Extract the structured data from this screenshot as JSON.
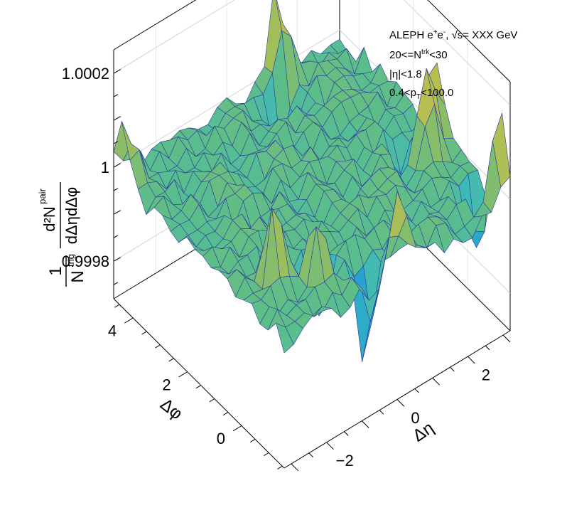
{
  "chart_data": {
    "type": "surface",
    "title": "",
    "experiment": "ALEPH e",
    "sup_plus": "+",
    "e_letter": "e",
    "sup_minus": "-",
    "energy": ", √s= XXX GeV",
    "mult_prefix": "20<=N",
    "mult_sup": "trk",
    "mult_suffix": "<30",
    "eta_cut": "|η|<1.8",
    "pt_prefix": "0.4<p",
    "pt_sub": "T",
    "pt_suffix": "<100.0",
    "xlabel": "Δη",
    "ylabel": "Δφ",
    "zlabel_left_num": "1",
    "zlabel_left_den": "N",
    "zlabel_left_den_sup": "trig",
    "zlabel_right_num": "d²N",
    "zlabel_right_num_sup": "pair",
    "zlabel_right_den": "dΔηdΔφ",
    "x_range": [
      -3.2,
      3.2
    ],
    "y_range": [
      -1.5708,
      4.7124
    ],
    "z_range": [
      0.99972,
      1.00025
    ],
    "x_tick_values": [
      -2,
      0,
      2
    ],
    "x_tick_labels": [
      "−2",
      "0",
      "2"
    ],
    "y_tick_values": [
      0,
      2,
      4
    ],
    "y_tick_labels": [
      "0",
      "2",
      "4"
    ],
    "z_tick_values": [
      0.9998,
      1.0,
      1.0002
    ],
    "z_tick_labels": [
      "0.9998",
      "1",
      "1.0002"
    ],
    "grid": true,
    "palette": [
      "#1a3fd6",
      "#1e88d6",
      "#35b8c6",
      "#5cbd8a",
      "#8fbd64",
      "#c8c048",
      "#f4d235"
    ],
    "nx": 24,
    "ny": 21,
    "base_value": 0.99999,
    "noise_amplitude": 2.5e-05,
    "peaks": [
      {
        "x": 0.0,
        "y": -1.57,
        "amp": 0.00018,
        "sigma": 0.22
      },
      {
        "x": -0.45,
        "y": -1.05,
        "amp": -0.00022,
        "sigma": 0.2
      },
      {
        "x": -1.5,
        "y": -0.55,
        "amp": 0.00016,
        "sigma": 0.18
      },
      {
        "x": -1.15,
        "y": -0.2,
        "amp": -0.00016,
        "sigma": 0.18
      },
      {
        "x": -2.3,
        "y": -0.05,
        "amp": 0.00018,
        "sigma": 0.18
      },
      {
        "x": -2.0,
        "y": 0.35,
        "amp": -0.00012,
        "sigma": 0.18
      },
      {
        "x": -3.1,
        "y": 4.35,
        "amp": 0.00012,
        "sigma": 0.22
      },
      {
        "x": 3.1,
        "y": -1.3,
        "amp": 0.00022,
        "sigma": 0.2
      },
      {
        "x": 2.85,
        "y": -0.8,
        "amp": -0.0002,
        "sigma": 0.18
      },
      {
        "x": 2.6,
        "y": 0.7,
        "amp": 0.0002,
        "sigma": 0.2
      },
      {
        "x": 2.35,
        "y": 1.15,
        "amp": -0.00016,
        "sigma": 0.18
      },
      {
        "x": 3.05,
        "y": 1.05,
        "amp": 0.00018,
        "sigma": 0.2
      },
      {
        "x": 1.4,
        "y": 4.6,
        "amp": 0.00022,
        "sigma": 0.2
      },
      {
        "x": 1.0,
        "y": 4.0,
        "amp": -0.00012,
        "sigma": 0.2
      }
    ]
  }
}
